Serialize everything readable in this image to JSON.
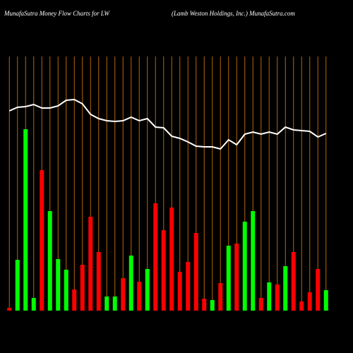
{
  "chart_data": {
    "type": "bar",
    "title": "MunafaSutra  Money Flow  Charts for LW",
    "subtitle": "(Lamb Weston  Holdings,  Inc.) MunafaSutra.com",
    "categories": [
      null,
      null,
      null,
      null,
      null,
      null,
      null,
      null,
      null,
      null,
      null,
      null,
      null,
      null,
      null,
      null,
      null,
      null,
      null,
      null,
      null,
      null,
      null,
      null,
      null,
      null,
      null,
      null,
      null,
      null,
      null,
      null,
      null,
      null,
      null,
      null,
      null,
      null,
      null,
      null
    ],
    "values": [
      4,
      72,
      257,
      18,
      199,
      141,
      73,
      58,
      30,
      65,
      133,
      83,
      20,
      20,
      46,
      78,
      41,
      59,
      152,
      114,
      146,
      55,
      69,
      110,
      17,
      15,
      39,
      92,
      95,
      126,
      141,
      18,
      40,
      37,
      63,
      83,
      13,
      26,
      59,
      29
    ],
    "colors": [
      "#ff0000",
      "#00ff00",
      "#00ff00",
      "#00ff00",
      "#ff0000",
      "#00ff00",
      "#00ff00",
      "#00ff00",
      "#ff0000",
      "#ff0000",
      "#ff0000",
      "#ff0000",
      "#00ff00",
      "#00ff00",
      "#ff0000",
      "#00ff00",
      "#ff0000",
      "#00ff00",
      "#ff0000",
      "#ff0000",
      "#ff0000",
      "#ff0000",
      "#ff0000",
      "#ff0000",
      "#ff0000",
      "#00ff00",
      "#ff0000",
      "#00ff00",
      "#ff0000",
      "#00ff00",
      "#00ff00",
      "#ff0000",
      "#00ff00",
      "#ff0000",
      "#00ff00",
      "#ff0000",
      "#ff0000",
      "#ff0000",
      "#ff0000",
      "#00ff00"
    ],
    "line": {
      "color": "#ffffff",
      "values": [
        283,
        288,
        289,
        292,
        287,
        287,
        290,
        298,
        299,
        293,
        278,
        272,
        269,
        268,
        269,
        274,
        269,
        272,
        260,
        259,
        247,
        244,
        239,
        233,
        232,
        232,
        229,
        242,
        235,
        250,
        253,
        250,
        253,
        250,
        260,
        256,
        255,
        254,
        246,
        251
      ]
    },
    "ylim": [
      0,
      360
    ],
    "grid_color": "#b8660b"
  }
}
